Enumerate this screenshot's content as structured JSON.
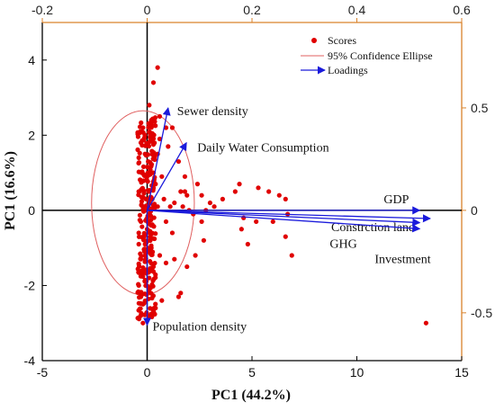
{
  "chart_data": {
    "type": "scatter",
    "xlabel": "PC1 (44.2%)",
    "ylabel": "PC1 (16.6%)",
    "xlim": [
      -5,
      15
    ],
    "ylim": [
      -4,
      5
    ],
    "x_ticks": [
      "-5",
      "0",
      "5",
      "10",
      "15"
    ],
    "y_ticks": [
      "-4",
      "-2",
      "0",
      "2",
      "4"
    ],
    "secondary_axes": {
      "color": "#d9822b",
      "x2lim": [
        -0.2,
        0.6
      ],
      "y2lim": [
        -0.7333,
        0.9167
      ],
      "x2_ticks": [
        "-0.2",
        "0",
        "0.2",
        "0.4",
        "0.6"
      ],
      "y2_ticks": [
        "-0.5",
        "0",
        "0.5"
      ]
    },
    "legend": {
      "placement": "top-right",
      "entries": [
        "Scores",
        "95% Confidence Ellipse",
        "Loadings"
      ]
    },
    "ellipse": {
      "cx": -0.2,
      "cy": 0.2,
      "rx": 2.45,
      "ry": 2.45,
      "color": "#e06060"
    },
    "loadings": [
      {
        "label": "Sewer density",
        "x": 0.04,
        "y": 0.5
      },
      {
        "label": "Daily Water Consumption",
        "x": 0.075,
        "y": 0.33
      },
      {
        "label": "GDP",
        "x": 0.52,
        "y": 0.0
      },
      {
        "label": "Constrction land",
        "x": 0.54,
        "y": -0.04
      },
      {
        "label": "GHG",
        "x": 0.52,
        "y": -0.06
      },
      {
        "label": "Investment",
        "x": 0.52,
        "y": -0.09
      },
      {
        "label": "Population density",
        "x": 0.0,
        "y": -0.56
      }
    ],
    "scores": [
      [
        0.5,
        3.8
      ],
      [
        0.3,
        3.4
      ],
      [
        0.1,
        2.8
      ],
      [
        0.2,
        2.4
      ],
      [
        0.6,
        2.5
      ],
      [
        0.9,
        2.2
      ],
      [
        1.2,
        2.2
      ],
      [
        0.6,
        1.9
      ],
      [
        1.0,
        1.7
      ],
      [
        1.5,
        1.3
      ],
      [
        1.8,
        0.9
      ],
      [
        2.4,
        0.7
      ],
      [
        2.6,
        0.4
      ],
      [
        1.6,
        0.5
      ],
      [
        1.9,
        0.4
      ],
      [
        1.1,
        0.1
      ],
      [
        1.7,
        0.1
      ],
      [
        2.0,
        0.0
      ],
      [
        2.8,
        0.0
      ],
      [
        3.2,
        0.1
      ],
      [
        3.6,
        0.3
      ],
      [
        4.2,
        0.5
      ],
      [
        4.4,
        0.7
      ],
      [
        5.3,
        0.6
      ],
      [
        5.8,
        0.5
      ],
      [
        6.3,
        0.4
      ],
      [
        6.6,
        0.3
      ],
      [
        3.0,
        0.2
      ],
      [
        2.2,
        -0.1
      ],
      [
        2.6,
        -0.3
      ],
      [
        4.6,
        -0.2
      ],
      [
        5.2,
        -0.3
      ],
      [
        6.0,
        -0.3
      ],
      [
        6.7,
        -0.1
      ],
      [
        4.5,
        -0.5
      ],
      [
        4.8,
        -0.9
      ],
      [
        6.6,
        -0.7
      ],
      [
        6.9,
        -1.2
      ],
      [
        2.7,
        -0.8
      ],
      [
        2.3,
        -1.2
      ],
      [
        1.9,
        -1.5
      ],
      [
        1.3,
        -1.3
      ],
      [
        0.9,
        -1.4
      ],
      [
        0.6,
        -1.2
      ],
      [
        1.5,
        -2.3
      ],
      [
        1.6,
        -2.2
      ],
      [
        0.7,
        -2.4
      ],
      [
        0.4,
        -2.6
      ],
      [
        -0.3,
        -2.8
      ],
      [
        -0.2,
        -3.0
      ],
      [
        13.3,
        -3.0
      ],
      [
        0.8,
        0.3
      ],
      [
        0.5,
        1.5
      ],
      [
        1.8,
        0.5
      ],
      [
        0.3,
        1.0
      ],
      [
        0.4,
        0.7
      ],
      [
        0.7,
        0.9
      ],
      [
        1.3,
        0.2
      ],
      [
        0.9,
        -0.3
      ],
      [
        1.2,
        -0.6
      ],
      [
        -0.3,
        1.8
      ],
      [
        -0.1,
        1.5
      ],
      [
        0.2,
        1.2
      ],
      [
        0.0,
        0.9
      ],
      [
        0.1,
        0.3
      ],
      [
        -0.3,
        0.8
      ],
      [
        -0.4,
        0.5
      ],
      [
        -0.2,
        0.1
      ],
      [
        0.1,
        -0.1
      ],
      [
        -0.3,
        -0.3
      ],
      [
        -0.4,
        -0.6
      ],
      [
        -0.1,
        -0.9
      ],
      [
        0.0,
        -1.1
      ],
      [
        -0.3,
        -1.3
      ],
      [
        -0.2,
        -1.6
      ],
      [
        0.1,
        -1.8
      ],
      [
        -0.4,
        -2.0
      ],
      [
        -0.3,
        -2.3
      ],
      [
        0.0,
        -0.5
      ],
      [
        0.2,
        -1.0
      ],
      [
        -0.2,
        2.2
      ],
      [
        0.2,
        2.0
      ],
      [
        -0.4,
        1.4
      ],
      [
        0.3,
        0.6
      ],
      [
        -0.1,
        0.0
      ],
      [
        0.2,
        -0.4
      ],
      [
        -0.4,
        -0.9
      ],
      [
        0.3,
        -1.5
      ],
      [
        -0.2,
        -2.5
      ],
      [
        0.5,
        0.1
      ]
    ]
  }
}
